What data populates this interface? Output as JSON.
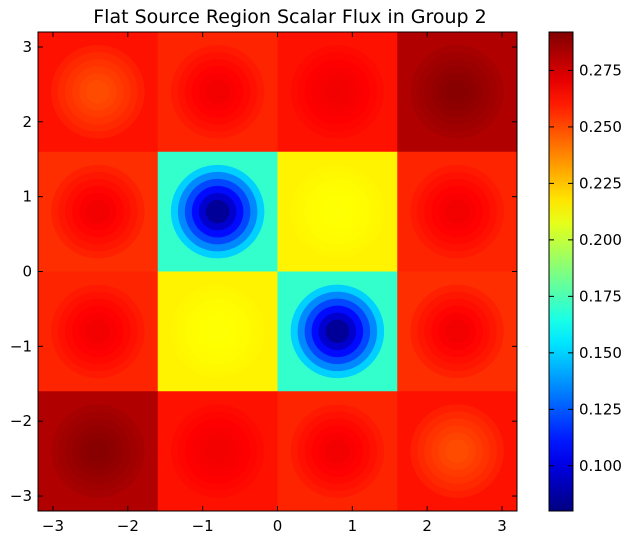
{
  "chart_data": {
    "type": "heatmap",
    "title": "Flat Source Region Scalar Flux in Group 2",
    "xlabel": "",
    "ylabel": "",
    "xlim": [
      -3.2,
      3.2
    ],
    "ylim": [
      -3.2,
      3.2
    ],
    "x_ticks": [
      -3,
      -2,
      -1,
      0,
      1,
      2,
      3
    ],
    "y_ticks": [
      -3,
      -2,
      -1,
      0,
      1,
      2,
      3
    ],
    "x_tick_labels": [
      "−3",
      "−2",
      "−1",
      "0",
      "1",
      "2",
      "3"
    ],
    "y_tick_labels": [
      "−3",
      "−2",
      "−1",
      "0",
      "1",
      "2",
      "3"
    ],
    "colorbar": {
      "colormap": "jet",
      "vmin": 0.08,
      "vmax": 0.292,
      "ticks": [
        0.1,
        0.125,
        0.15,
        0.175,
        0.2,
        0.225,
        0.25,
        0.275
      ],
      "tick_labels": [
        "0.100",
        "0.125",
        "0.150",
        "0.175",
        "0.200",
        "0.225",
        "0.250",
        "0.275"
      ]
    },
    "grid": false,
    "pin_pitch": 1.6,
    "pins": [
      {
        "x": -2.4,
        "y": 2.4,
        "type": "moderate"
      },
      {
        "x": -0.8,
        "y": 2.4,
        "type": "fuel"
      },
      {
        "x": 0.8,
        "y": 2.4,
        "type": "fuel"
      },
      {
        "x": 2.4,
        "y": 2.4,
        "type": "hot"
      },
      {
        "x": -2.4,
        "y": 0.8,
        "type": "fuel"
      },
      {
        "x": -0.8,
        "y": 0.8,
        "type": "absorber"
      },
      {
        "x": 0.8,
        "y": 0.8,
        "type": "guide"
      },
      {
        "x": 2.4,
        "y": 0.8,
        "type": "fuel"
      },
      {
        "x": -2.4,
        "y": -0.8,
        "type": "fuel"
      },
      {
        "x": -0.8,
        "y": -0.8,
        "type": "guide"
      },
      {
        "x": 0.8,
        "y": -0.8,
        "type": "absorber"
      },
      {
        "x": 2.4,
        "y": -0.8,
        "type": "fuel"
      },
      {
        "x": -2.4,
        "y": -2.4,
        "type": "hot"
      },
      {
        "x": -0.8,
        "y": -2.4,
        "type": "fuel"
      },
      {
        "x": 0.8,
        "y": -2.4,
        "type": "fuel"
      },
      {
        "x": 2.4,
        "y": -2.4,
        "type": "moderate"
      }
    ],
    "cell_values": [
      [
        0.262,
        0.258,
        0.262,
        0.282
      ],
      [
        0.256,
        0.17,
        0.215,
        0.258
      ],
      [
        0.258,
        0.215,
        0.17,
        0.256
      ],
      [
        0.282,
        0.262,
        0.258,
        0.262
      ]
    ],
    "pin_center_values": {
      "moderate": 0.25,
      "fuel": 0.268,
      "absorber": 0.085,
      "guide": 0.212,
      "hot": 0.29
    }
  }
}
